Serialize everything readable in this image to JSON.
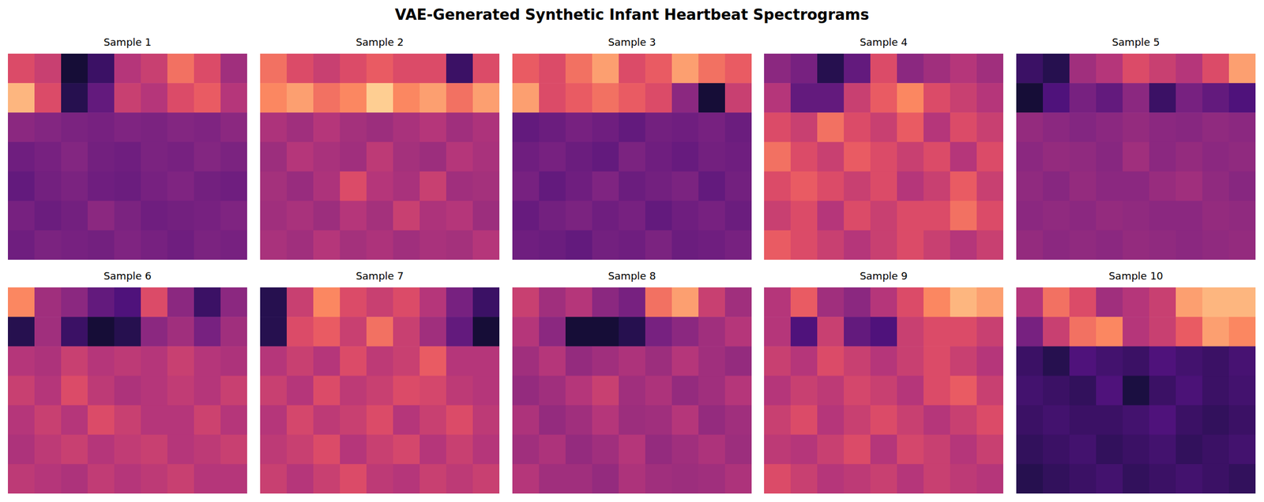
{
  "title": "VAE-Generated Synthetic Infant Heartbeat Spectrograms",
  "chart_data": [
    {
      "type": "heatmap",
      "title": "Sample 1",
      "color": "magma",
      "color_range": [
        0,
        1
      ],
      "tick_labels": false,
      "cells": [
        [
          0.6,
          0.55,
          0.1,
          0.2,
          0.5,
          0.55,
          0.7,
          0.6,
          0.45
        ],
        [
          0.85,
          0.6,
          0.15,
          0.3,
          0.55,
          0.5,
          0.6,
          0.65,
          0.5
        ],
        [
          0.4,
          0.38,
          0.36,
          0.35,
          0.37,
          0.36,
          0.38,
          0.37,
          0.4
        ],
        [
          0.33,
          0.35,
          0.38,
          0.34,
          0.33,
          0.36,
          0.35,
          0.38,
          0.36
        ],
        [
          0.3,
          0.34,
          0.36,
          0.33,
          0.32,
          0.35,
          0.37,
          0.34,
          0.33
        ],
        [
          0.35,
          0.32,
          0.34,
          0.4,
          0.36,
          0.33,
          0.34,
          0.35,
          0.37
        ],
        [
          0.33,
          0.36,
          0.35,
          0.34,
          0.37,
          0.35,
          0.33,
          0.36,
          0.35
        ]
      ]
    },
    {
      "type": "heatmap",
      "title": "Sample 2",
      "color": "magma",
      "color_range": [
        0,
        1
      ],
      "tick_labels": false,
      "cells": [
        [
          0.7,
          0.6,
          0.55,
          0.6,
          0.65,
          0.6,
          0.6,
          0.2,
          0.6
        ],
        [
          0.75,
          0.8,
          0.7,
          0.75,
          0.9,
          0.75,
          0.8,
          0.7,
          0.8
        ],
        [
          0.48,
          0.45,
          0.5,
          0.46,
          0.44,
          0.47,
          0.5,
          0.45,
          0.48
        ],
        [
          0.44,
          0.5,
          0.47,
          0.45,
          0.52,
          0.46,
          0.44,
          0.5,
          0.47
        ],
        [
          0.46,
          0.43,
          0.48,
          0.6,
          0.5,
          0.47,
          0.55,
          0.45,
          0.46
        ],
        [
          0.45,
          0.47,
          0.44,
          0.5,
          0.46,
          0.55,
          0.48,
          0.5,
          0.44
        ],
        [
          0.47,
          0.45,
          0.5,
          0.46,
          0.48,
          0.45,
          0.47,
          0.46,
          0.5
        ]
      ]
    },
    {
      "type": "heatmap",
      "title": "Sample 3",
      "color": "magma",
      "color_range": [
        0,
        1
      ],
      "tick_labels": false,
      "cells": [
        [
          0.65,
          0.6,
          0.7,
          0.8,
          0.6,
          0.65,
          0.8,
          0.7,
          0.65
        ],
        [
          0.8,
          0.6,
          0.65,
          0.7,
          0.65,
          0.6,
          0.4,
          0.1,
          0.55
        ],
        [
          0.3,
          0.32,
          0.35,
          0.33,
          0.3,
          0.34,
          0.33,
          0.35,
          0.32
        ],
        [
          0.33,
          0.35,
          0.32,
          0.3,
          0.36,
          0.33,
          0.31,
          0.34,
          0.33
        ],
        [
          0.35,
          0.3,
          0.33,
          0.37,
          0.32,
          0.34,
          0.36,
          0.3,
          0.34
        ],
        [
          0.31,
          0.34,
          0.36,
          0.33,
          0.35,
          0.3,
          0.33,
          0.35,
          0.32
        ],
        [
          0.33,
          0.32,
          0.3,
          0.34,
          0.33,
          0.36,
          0.32,
          0.33,
          0.35
        ]
      ]
    },
    {
      "type": "heatmap",
      "title": "Sample 4",
      "color": "magma",
      "color_range": [
        0,
        1
      ],
      "tick_labels": false,
      "cells": [
        [
          0.4,
          0.35,
          0.15,
          0.3,
          0.6,
          0.4,
          0.45,
          0.5,
          0.45
        ],
        [
          0.5,
          0.3,
          0.3,
          0.55,
          0.65,
          0.75,
          0.6,
          0.55,
          0.5
        ],
        [
          0.6,
          0.55,
          0.7,
          0.6,
          0.55,
          0.65,
          0.5,
          0.6,
          0.55
        ],
        [
          0.7,
          0.6,
          0.55,
          0.65,
          0.6,
          0.55,
          0.6,
          0.5,
          0.6
        ],
        [
          0.6,
          0.65,
          0.6,
          0.55,
          0.6,
          0.5,
          0.55,
          0.65,
          0.55
        ],
        [
          0.55,
          0.6,
          0.5,
          0.6,
          0.55,
          0.6,
          0.6,
          0.7,
          0.6
        ],
        [
          0.65,
          0.6,
          0.55,
          0.5,
          0.55,
          0.6,
          0.55,
          0.5,
          0.55
        ]
      ]
    },
    {
      "type": "heatmap",
      "title": "Sample 5",
      "color": "magma",
      "color_range": [
        0,
        1
      ],
      "tick_labels": false,
      "cells": [
        [
          0.2,
          0.15,
          0.45,
          0.5,
          0.6,
          0.55,
          0.5,
          0.6,
          0.8
        ],
        [
          0.1,
          0.25,
          0.35,
          0.3,
          0.4,
          0.2,
          0.35,
          0.3,
          0.25
        ],
        [
          0.42,
          0.4,
          0.38,
          0.4,
          0.42,
          0.4,
          0.39,
          0.41,
          0.4
        ],
        [
          0.4,
          0.42,
          0.41,
          0.39,
          0.45,
          0.4,
          0.42,
          0.4,
          0.41
        ],
        [
          0.41,
          0.39,
          0.42,
          0.4,
          0.4,
          0.43,
          0.45,
          0.41,
          0.39
        ],
        [
          0.4,
          0.41,
          0.4,
          0.42,
          0.41,
          0.4,
          0.4,
          0.42,
          0.41
        ],
        [
          0.42,
          0.4,
          0.41,
          0.4,
          0.42,
          0.41,
          0.4,
          0.41,
          0.42
        ]
      ]
    },
    {
      "type": "heatmap",
      "title": "Sample 6",
      "color": "magma",
      "color_range": [
        0,
        1
      ],
      "tick_labels": false,
      "cells": [
        [
          0.75,
          0.45,
          0.4,
          0.3,
          0.25,
          0.6,
          0.4,
          0.2,
          0.4
        ],
        [
          0.15,
          0.45,
          0.2,
          0.1,
          0.15,
          0.4,
          0.45,
          0.35,
          0.45
        ],
        [
          0.5,
          0.48,
          0.55,
          0.5,
          0.52,
          0.5,
          0.55,
          0.5,
          0.48
        ],
        [
          0.55,
          0.5,
          0.6,
          0.52,
          0.48,
          0.5,
          0.53,
          0.5,
          0.55
        ],
        [
          0.5,
          0.55,
          0.5,
          0.6,
          0.55,
          0.5,
          0.5,
          0.56,
          0.5
        ],
        [
          0.48,
          0.52,
          0.55,
          0.5,
          0.53,
          0.55,
          0.5,
          0.52,
          0.55
        ],
        [
          0.52,
          0.5,
          0.48,
          0.53,
          0.5,
          0.52,
          0.55,
          0.5,
          0.5
        ]
      ]
    },
    {
      "type": "heatmap",
      "title": "Sample 7",
      "color": "magma",
      "color_range": [
        0,
        1
      ],
      "tick_labels": false,
      "cells": [
        [
          0.15,
          0.55,
          0.75,
          0.6,
          0.55,
          0.6,
          0.5,
          0.35,
          0.2
        ],
        [
          0.15,
          0.6,
          0.65,
          0.55,
          0.7,
          0.55,
          0.45,
          0.3,
          0.1
        ],
        [
          0.5,
          0.55,
          0.5,
          0.6,
          0.52,
          0.55,
          0.65,
          0.5,
          0.5
        ],
        [
          0.55,
          0.5,
          0.6,
          0.52,
          0.55,
          0.6,
          0.58,
          0.52,
          0.5
        ],
        [
          0.5,
          0.58,
          0.52,
          0.55,
          0.6,
          0.5,
          0.55,
          0.6,
          0.52
        ],
        [
          0.52,
          0.55,
          0.6,
          0.5,
          0.55,
          0.58,
          0.5,
          0.55,
          0.5
        ],
        [
          0.55,
          0.5,
          0.55,
          0.6,
          0.52,
          0.5,
          0.55,
          0.52,
          0.55
        ]
      ]
    },
    {
      "type": "heatmap",
      "title": "Sample 8",
      "color": "magma",
      "color_range": [
        0,
        1
      ],
      "tick_labels": false,
      "cells": [
        [
          0.55,
          0.45,
          0.5,
          0.4,
          0.35,
          0.7,
          0.8,
          0.55,
          0.45
        ],
        [
          0.5,
          0.4,
          0.1,
          0.1,
          0.15,
          0.35,
          0.4,
          0.45,
          0.5
        ],
        [
          0.45,
          0.5,
          0.42,
          0.45,
          0.48,
          0.44,
          0.5,
          0.45,
          0.42
        ],
        [
          0.42,
          0.45,
          0.5,
          0.55,
          0.45,
          0.48,
          0.42,
          0.45,
          0.5
        ],
        [
          0.48,
          0.42,
          0.45,
          0.5,
          0.44,
          0.45,
          0.5,
          0.42,
          0.45
        ],
        [
          0.45,
          0.48,
          0.42,
          0.45,
          0.5,
          0.42,
          0.45,
          0.48,
          0.44
        ],
        [
          0.5,
          0.45,
          0.45,
          0.42,
          0.48,
          0.45,
          0.44,
          0.45,
          0.48
        ]
      ]
    },
    {
      "type": "heatmap",
      "title": "Sample 9",
      "color": "magma",
      "color_range": [
        0,
        1
      ],
      "tick_labels": false,
      "cells": [
        [
          0.5,
          0.65,
          0.45,
          0.4,
          0.5,
          0.6,
          0.75,
          0.85,
          0.8
        ],
        [
          0.5,
          0.25,
          0.55,
          0.3,
          0.25,
          0.55,
          0.6,
          0.6,
          0.55
        ],
        [
          0.55,
          0.5,
          0.6,
          0.55,
          0.5,
          0.55,
          0.6,
          0.55,
          0.5
        ],
        [
          0.5,
          0.55,
          0.52,
          0.58,
          0.55,
          0.5,
          0.6,
          0.65,
          0.55
        ],
        [
          0.55,
          0.6,
          0.5,
          0.55,
          0.6,
          0.55,
          0.5,
          0.55,
          0.6
        ],
        [
          0.52,
          0.5,
          0.55,
          0.6,
          0.5,
          0.58,
          0.55,
          0.5,
          0.55
        ],
        [
          0.6,
          0.55,
          0.5,
          0.52,
          0.55,
          0.5,
          0.55,
          0.52,
          0.5
        ]
      ]
    },
    {
      "type": "heatmap",
      "title": "Sample 10",
      "color": "magma",
      "color_range": [
        0,
        1
      ],
      "tick_labels": false,
      "cells": [
        [
          0.5,
          0.7,
          0.6,
          0.45,
          0.5,
          0.55,
          0.8,
          0.85,
          0.85
        ],
        [
          0.35,
          0.55,
          0.7,
          0.75,
          0.5,
          0.55,
          0.65,
          0.8,
          0.75
        ],
        [
          0.2,
          0.15,
          0.25,
          0.22,
          0.2,
          0.25,
          0.22,
          0.2,
          0.23
        ],
        [
          0.22,
          0.2,
          0.18,
          0.25,
          0.12,
          0.2,
          0.24,
          0.2,
          0.22
        ],
        [
          0.2,
          0.22,
          0.2,
          0.2,
          0.22,
          0.25,
          0.2,
          0.18,
          0.2
        ],
        [
          0.18,
          0.2,
          0.22,
          0.18,
          0.2,
          0.22,
          0.18,
          0.2,
          0.22
        ],
        [
          0.15,
          0.18,
          0.2,
          0.22,
          0.18,
          0.2,
          0.22,
          0.2,
          0.18
        ]
      ]
    }
  ]
}
